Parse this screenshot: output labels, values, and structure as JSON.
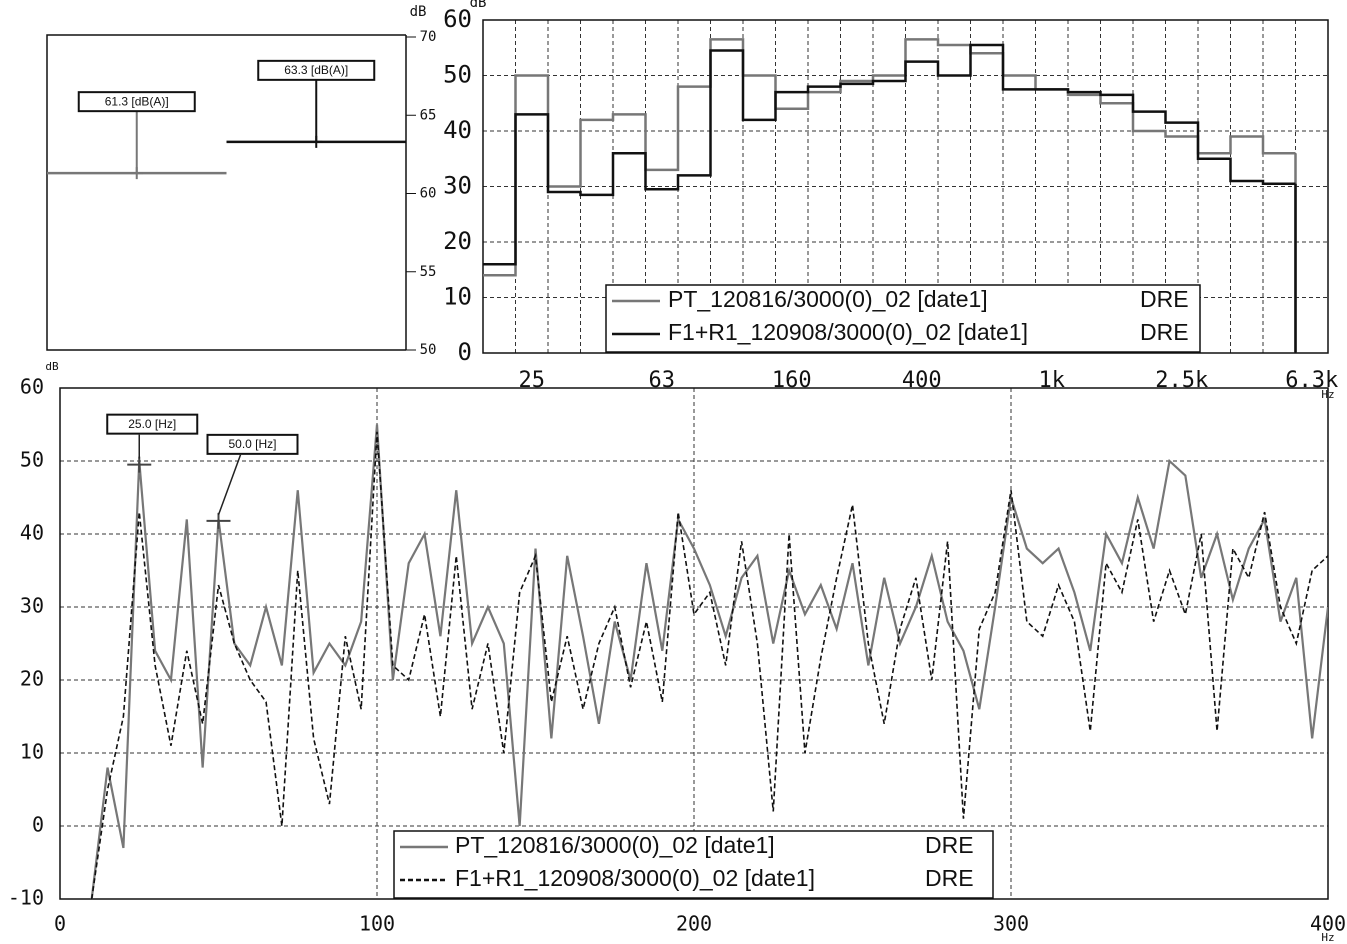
{
  "chart_data": [
    {
      "type": "level",
      "ylabel": "dB",
      "ylim": [
        50,
        70
      ],
      "yticks": [
        50,
        55,
        60,
        65,
        70
      ],
      "values": [
        61.3,
        63.3
      ],
      "value_labels": [
        "61.3 [dB(A)]",
        "63.3 [dB(A)]"
      ],
      "colors": [
        "#777777",
        "#111111"
      ]
    },
    {
      "type": "step",
      "ylabel": "dB",
      "xlabel": "Hz",
      "ylim": [
        0,
        60
      ],
      "yticks": [
        0,
        10,
        20,
        30,
        40,
        50,
        60
      ],
      "grid": true,
      "categories": [
        null,
        "25",
        null,
        null,
        null,
        "63",
        null,
        null,
        null,
        "160",
        null,
        null,
        null,
        "400",
        null,
        null,
        null,
        "1k",
        null,
        null,
        null,
        "2.5k",
        null,
        null,
        null,
        "6.3k"
      ],
      "series": [
        {
          "name": "PT_120816/3000(0)_02 [date1]",
          "mode": "DRE",
          "color": "#777777",
          "values": [
            14,
            50,
            30,
            42,
            43,
            33,
            48,
            56.5,
            50,
            44,
            47,
            49,
            50,
            56.5,
            55.5,
            54,
            50,
            47.5,
            46.5,
            45,
            40,
            39,
            36,
            39,
            36,
            null
          ]
        },
        {
          "name": "F1+R1_120908/3000(0)_02 [date1]",
          "mode": "DRE",
          "color": "#111111",
          "values": [
            16,
            43,
            29,
            28.5,
            36,
            29.5,
            32,
            54.5,
            42,
            47,
            48,
            48.5,
            49,
            52.5,
            50,
            55.5,
            47.5,
            47.5,
            47,
            46.5,
            43.5,
            41.5,
            35,
            31,
            30.5,
            null
          ]
        }
      ]
    },
    {
      "type": "line",
      "ylabel": "dB",
      "xlabel": "Hz",
      "xlim": [
        0,
        400
      ],
      "xticks": [
        0,
        100,
        200,
        300,
        400
      ],
      "ylim": [
        -10,
        60
      ],
      "yticks": [
        -10,
        0,
        10,
        20,
        30,
        40,
        50,
        60
      ],
      "grid": true,
      "x": [
        10,
        15,
        20,
        25,
        30,
        35,
        40,
        45,
        50,
        55,
        60,
        65,
        70,
        75,
        80,
        85,
        90,
        95,
        100,
        105,
        110,
        115,
        120,
        125,
        130,
        135,
        140,
        145,
        150,
        155,
        160,
        165,
        170,
        175,
        180,
        185,
        190,
        195,
        200,
        205,
        210,
        215,
        220,
        225,
        230,
        235,
        240,
        245,
        250,
        255,
        260,
        265,
        270,
        275,
        280,
        285,
        290,
        295,
        300,
        305,
        310,
        315,
        320,
        325,
        330,
        335,
        340,
        345,
        350,
        355,
        360,
        365,
        370,
        375,
        380,
        385,
        390,
        395,
        400
      ],
      "series": [
        {
          "name": "PT_120816/3000(0)_02 [date1]",
          "mode": "DRE",
          "color": "#777777",
          "dash": false,
          "values": [
            -10,
            8,
            -3,
            50,
            24,
            20,
            42,
            8,
            42,
            25,
            22,
            30,
            22,
            46,
            21,
            25,
            22,
            28,
            55,
            20,
            36,
            40,
            26,
            46,
            25,
            30,
            25,
            0,
            38,
            12,
            37,
            26,
            14,
            28,
            20,
            36,
            24,
            42,
            38,
            33,
            26,
            34,
            37,
            25,
            35,
            29,
            33,
            27,
            36,
            22,
            34,
            25,
            30,
            37,
            28,
            24,
            16,
            30,
            45,
            38,
            36,
            38,
            32,
            24,
            40,
            36,
            45,
            38,
            50,
            48,
            34,
            40,
            31,
            38,
            42,
            28,
            34,
            12,
            30
          ]
        },
        {
          "name": "F1+R1_120908/3000(0)_02 [date1]",
          "mode": "DRE",
          "color": "#111111",
          "dash": true,
          "values": [
            -10,
            5,
            15,
            43,
            22,
            11,
            24,
            14,
            33,
            25,
            20,
            17,
            0,
            35,
            12,
            3,
            26,
            16,
            54,
            22,
            20,
            29,
            15,
            37,
            16,
            25,
            10,
            32,
            37,
            17,
            26,
            16,
            25,
            30,
            19,
            28,
            17,
            43,
            29,
            32,
            22,
            39,
            25,
            2,
            40,
            10,
            23,
            34,
            44,
            25,
            14,
            27,
            34,
            20,
            39,
            1,
            27,
            32,
            46,
            28,
            26,
            33,
            28,
            13,
            36,
            32,
            42,
            28,
            35,
            29,
            40,
            13,
            38,
            34,
            43,
            30,
            25,
            35,
            37
          ]
        }
      ],
      "annotations": [
        {
          "text": "25.0 [Hz]",
          "x": 25,
          "y": 49.5
        },
        {
          "text": "50.0 [Hz]",
          "x": 50,
          "y": 41.8
        }
      ]
    }
  ]
}
